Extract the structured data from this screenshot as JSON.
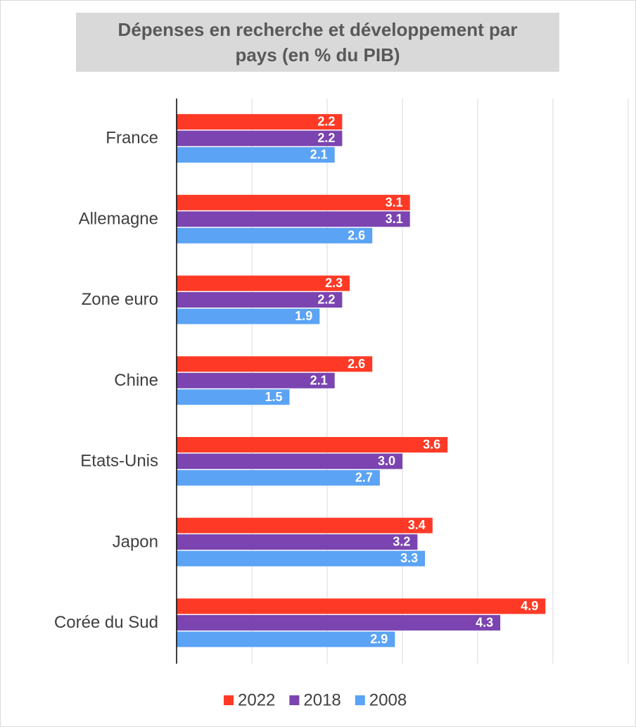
{
  "chart_data": {
    "type": "bar",
    "orientation": "horizontal",
    "title": "Dépenses en recherche et développement par pays (en % du PIB)",
    "categories": [
      "France",
      "Allemagne",
      "Zone euro",
      "Chine",
      "Etats-Unis",
      "Japon",
      "Corée du Sud"
    ],
    "series": [
      {
        "name": "2022",
        "color": "#fe3a26",
        "values": [
          2.2,
          3.1,
          2.3,
          2.6,
          3.6,
          3.4,
          4.9
        ],
        "value_labels": [
          "2.2",
          "3.1",
          "2.3",
          "2.6",
          "3.6",
          "3.4",
          "4.9"
        ]
      },
      {
        "name": "2018",
        "color": "#7b44b0",
        "values": [
          2.2,
          3.1,
          2.2,
          2.1,
          3.0,
          3.2,
          4.3
        ],
        "value_labels": [
          "2.2",
          "3.1",
          "2.2",
          "2.1",
          "3.0",
          "3.2",
          "4.3"
        ]
      },
      {
        "name": "2008",
        "color": "#5ba3f4",
        "values": [
          2.1,
          2.6,
          1.9,
          1.5,
          2.7,
          3.3,
          2.9
        ],
        "value_labels": [
          "2.1",
          "2.6",
          "1.9",
          "1.5",
          "2.7",
          "3.3",
          "2.9"
        ]
      }
    ],
    "xlim": [
      0,
      6
    ],
    "xticks": [
      0,
      1,
      2,
      3,
      4,
      5,
      6
    ],
    "grid": true,
    "legend": "bottom"
  }
}
